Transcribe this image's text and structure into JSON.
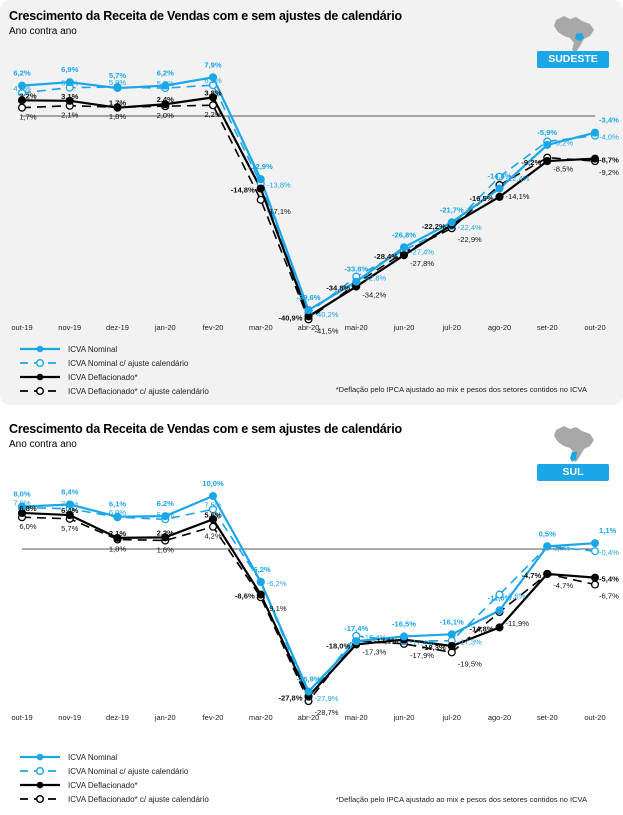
{
  "charts_meta": [
    {
      "title": "Crescimento da Receita de Vendas com e sem ajustes de calendário",
      "subtitle": "Ano contra ano",
      "region": "SUDESTE",
      "map_icon": "brazil-map-icon"
    },
    {
      "title": "Crescimento da Receita de Vendas com e sem ajustes de calendário",
      "subtitle": "Ano contra ano",
      "region": "SUL",
      "map_icon": "brazil-map-icon"
    }
  ],
  "legend": {
    "items": [
      "ICVA Nominal",
      "ICVA Nominal c/ ajuste calendário",
      "ICVA Deflacionado*",
      "ICVA Deflacionado* c/ ajuste calendário"
    ],
    "footnote": "*Deflação pelo IPCA ajustado ao mix e pesos dos setores contidos no ICVA"
  },
  "colors": {
    "nominal": "#1ba6e8",
    "deflacionado": "#000000",
    "panel": "#f2f2f2",
    "badge": "#1ba6e8"
  },
  "chart_data": [
    {
      "type": "line",
      "title": "Crescimento da Receita de Vendas com e sem ajustes de calendário",
      "subtitle": "Ano contra ano",
      "region": "SUDESTE",
      "xlabel": "",
      "ylabel": "",
      "categories": [
        "out-19",
        "nov-19",
        "dez-19",
        "jan-20",
        "fev-20",
        "mar-20",
        "abr-20",
        "mai-20",
        "jun-20",
        "jul-20",
        "ago-20",
        "set-20",
        "out-20"
      ],
      "ylim": [
        -42,
        10
      ],
      "grid": false,
      "legend_position": "bottom-left",
      "series": [
        {
          "name": "ICVA Nominal",
          "values": [
            6.2,
            6.9,
            5.7,
            6.2,
            7.9,
            -12.9,
            -39.6,
            -33.8,
            -26.8,
            -21.7,
            -14.8,
            -5.9,
            -3.4
          ],
          "labels": [
            "6,2%",
            "6,9%",
            "5,7%",
            "6,2%",
            "7,9%",
            "-12,9%",
            "-39,6%",
            "-33,8%",
            "-26,8%",
            "-21,7%",
            "-14,8%",
            "-5,9%",
            "-3,4%"
          ]
        },
        {
          "name": "ICVA Nominal c/ ajuste calendário",
          "values": [
            4.7,
            5.8,
            5.9,
            5.7,
            6.3,
            -13.8,
            -40.2,
            -32.8,
            -27.4,
            -22.4,
            -12.4,
            -5.2,
            -4.0
          ],
          "labels": [
            "4,7%",
            "5,8%",
            "5,9%",
            "5,7%",
            "6,3%",
            "-13,8%",
            "-40,2%",
            "-32,8%",
            "-27,4%",
            "-22,4%",
            "-12,4%",
            "-5,2%",
            "-4,0%"
          ]
        },
        {
          "name": "ICVA Deflacionado*",
          "values": [
            3.2,
            3.1,
            1.7,
            2.4,
            3.8,
            -14.8,
            -40.9,
            -34.8,
            -28.4,
            -22.2,
            -16.5,
            -9.2,
            -8.7
          ],
          "labels": [
            "3,2%",
            "3,1%",
            "1,7%",
            "2,4%",
            "3,8%",
            "-14,8%",
            "-40,9%",
            "-34,8%",
            "-28,4%",
            "-22,2%",
            "-16,5%",
            "-9,2%",
            "-8,7%"
          ]
        },
        {
          "name": "ICVA Deflacionado* c/ ajuste calendário",
          "values": [
            1.7,
            2.1,
            1.8,
            2.0,
            2.2,
            -17.1,
            -41.5,
            -34.2,
            -27.8,
            -22.9,
            -14.1,
            -8.5,
            -9.2
          ],
          "labels": [
            "1,7%",
            "2,1%",
            "1,8%",
            "2,0%",
            "2,2%",
            "-17,1%",
            "-41,5%",
            "-34,2%",
            "-27,8%",
            "-22,9%",
            "-14,1%",
            "-8,5%",
            "-9,2%"
          ]
        }
      ]
    },
    {
      "type": "line",
      "title": "Crescimento da Receita de Vendas com e sem ajustes de calendário",
      "subtitle": "Ano contra ano",
      "region": "SUL",
      "xlabel": "",
      "ylabel": "",
      "categories": [
        "out-19",
        "nov-19",
        "dez-19",
        "jan-20",
        "fev-20",
        "mar-20",
        "abr-20",
        "mai-20",
        "jun-20",
        "jul-20",
        "ago-20",
        "set-20",
        "out-20"
      ],
      "ylim": [
        -30,
        12
      ],
      "grid": false,
      "legend_position": "bottom-left",
      "series": [
        {
          "name": "ICVA Nominal",
          "values": [
            8.0,
            8.4,
            6.1,
            6.2,
            10.0,
            -6.2,
            -26.9,
            -17.4,
            -16.5,
            -16.1,
            -11.6,
            0.5,
            1.1
          ],
          "labels": [
            "8,0%",
            "8,4%",
            "6,1%",
            "6,2%",
            "10,0%",
            "-6,2%",
            "-26,9%",
            "-17,4%",
            "-16,5%",
            "-16,1%",
            "-11,6%",
            "0,5%",
            "1,1%"
          ]
        },
        {
          "name": "ICVA Nominal c/ ajuste calendário",
          "values": [
            7.8,
            7.6,
            6.0,
            5.6,
            7.5,
            -6.2,
            -27.9,
            -16.4,
            -17.4,
            -17.3,
            -8.6,
            0.5,
            -0.4
          ],
          "labels": [
            "7,8%",
            "7,6%",
            "6,0%",
            "5,6%",
            "7,5%",
            "-6,2%",
            "-27,9%",
            "-16,4%",
            "-17,4%",
            "-17,3%",
            "-8,6%",
            "0,5%",
            "-0,4%"
          ]
        },
        {
          "name": "ICVA Deflacionado*",
          "values": [
            6.8,
            6.4,
            2.1,
            2.2,
            5.6,
            -8.6,
            -27.8,
            -18.0,
            -17.1,
            -18.3,
            -14.8,
            -4.7,
            -5.4
          ],
          "labels": [
            "6,8%",
            "6,4%",
            "2,1%",
            "2,2%",
            "5,6%",
            "-8,6%",
            "-27,8%",
            "-18,0%",
            "-17,1%",
            "-18,3%",
            "-14,8%",
            "-4,7%",
            "-5,4%"
          ]
        },
        {
          "name": "ICVA Deflacionado* c/ ajuste calendário",
          "values": [
            6.0,
            5.7,
            1.8,
            1.6,
            4.2,
            -9.1,
            -28.7,
            -17.3,
            -17.9,
            -19.5,
            -11.9,
            -4.7,
            -6.7
          ],
          "labels": [
            "6,0%",
            "5,7%",
            "1,8%",
            "1,6%",
            "4,2%",
            "-9,1%",
            "-28,7%",
            "-17,3%",
            "-17,9%",
            "-19,5%",
            "-11,9%",
            "-4,7%",
            "-6,7%"
          ]
        }
      ]
    }
  ]
}
